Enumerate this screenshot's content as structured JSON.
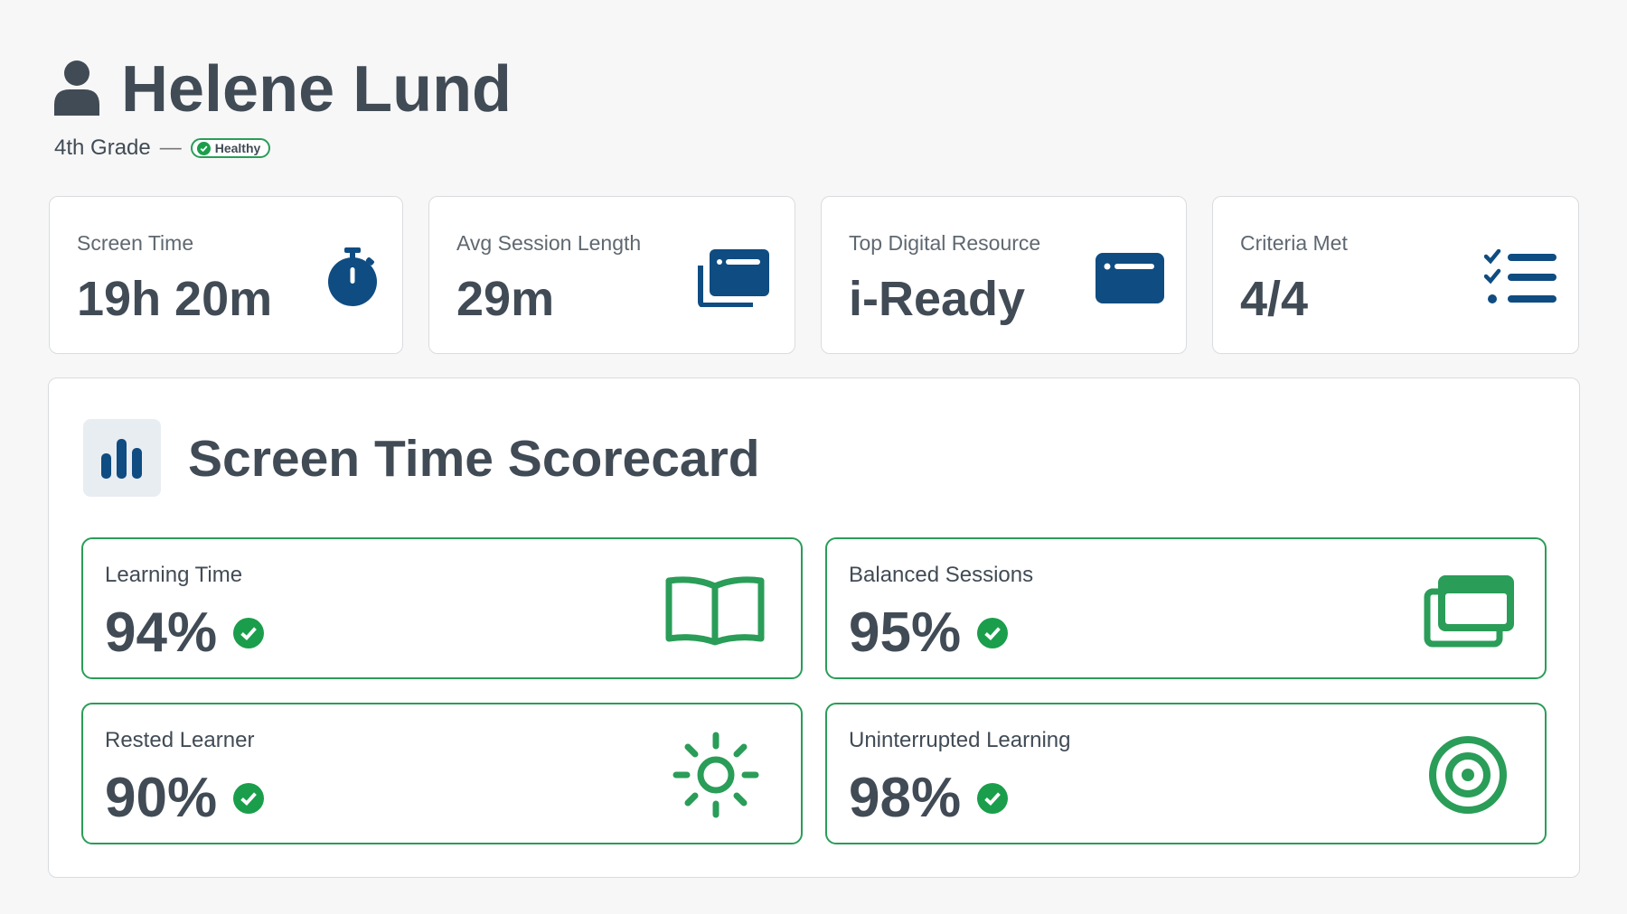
{
  "header": {
    "name": "Helene Lund",
    "grade": "4th Grade",
    "separator": "—",
    "status": "Healthy"
  },
  "stats": [
    {
      "label": "Screen Time",
      "value": "19h 20m"
    },
    {
      "label": "Avg Session Length",
      "value": "29m"
    },
    {
      "label": "Top Digital Resource",
      "value": "i-Ready"
    },
    {
      "label": "Criteria Met",
      "value": "4/4"
    }
  ],
  "scorecard": {
    "title": "Screen Time Scorecard",
    "metrics": [
      {
        "label": "Learning Time",
        "value": "94%"
      },
      {
        "label": "Balanced Sessions",
        "value": "95%"
      },
      {
        "label": "Rested Learner",
        "value": "90%"
      },
      {
        "label": "Uninterrupted Learning",
        "value": "98%"
      }
    ]
  }
}
